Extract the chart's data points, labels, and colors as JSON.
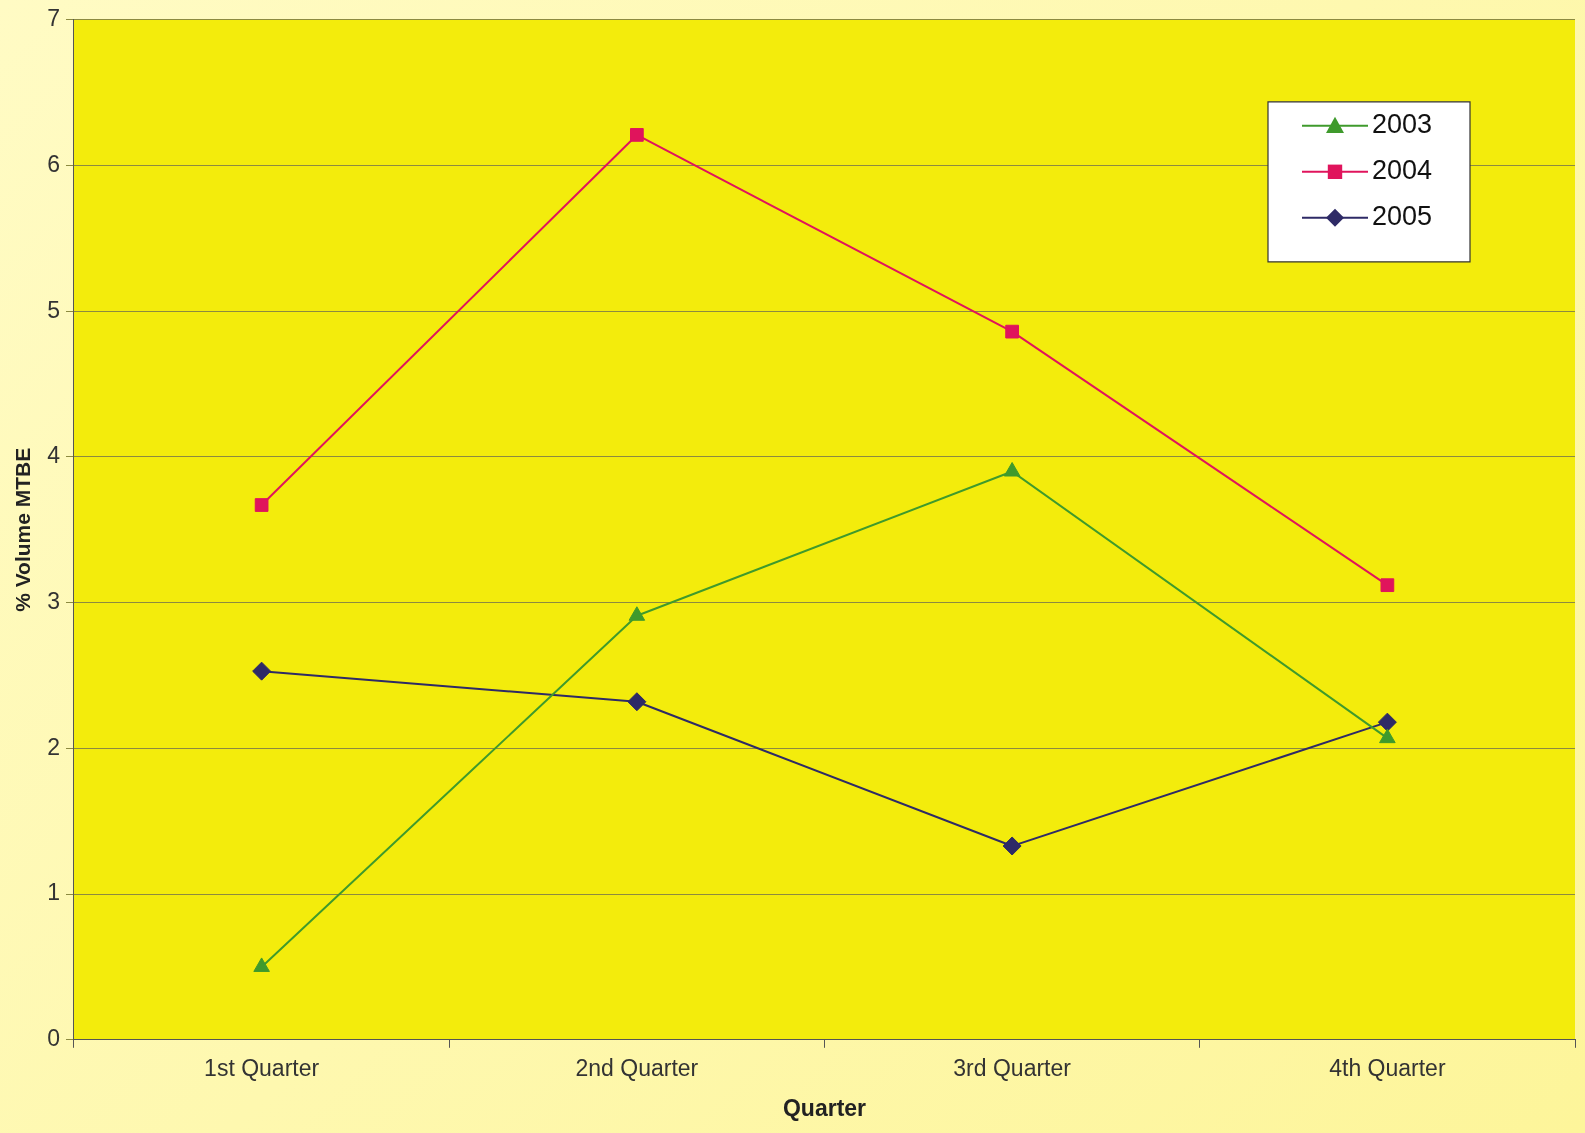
{
  "chart_data": {
    "type": "line",
    "xlabel": "Quarter",
    "ylabel": "% Volume MTBE",
    "categories": [
      "1st Quarter",
      "2nd Quarter",
      "3rd Quarter",
      "4th Quarter"
    ],
    "series": [
      {
        "name": "2003",
        "color": "#3f9a2c",
        "marker": "triangle",
        "values": [
          0.5,
          2.91,
          3.9,
          2.07
        ]
      },
      {
        "name": "2004",
        "color": "#e0145c",
        "marker": "square",
        "values": [
          3.67,
          6.21,
          4.86,
          3.12
        ]
      },
      {
        "name": "2005",
        "color": "#2e2a66",
        "marker": "diamond",
        "values": [
          2.53,
          2.32,
          1.33,
          2.18
        ]
      }
    ],
    "ylim": [
      0,
      7
    ],
    "yticks": [
      0,
      1,
      2,
      3,
      4,
      5,
      6,
      7
    ],
    "grid": "y",
    "legend": "top right"
  }
}
